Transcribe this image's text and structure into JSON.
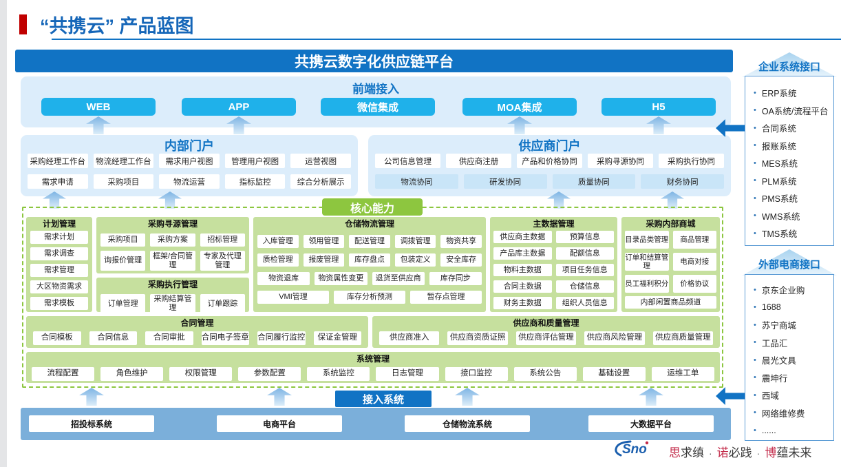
{
  "header": {
    "title": "“共携云” 产品蓝图",
    "platform": "共携云数字化供应链平台"
  },
  "frontend": {
    "title": "前端接入",
    "items": [
      "WEB",
      "APP",
      "微信集成",
      "MOA集成",
      "H5"
    ]
  },
  "internal_portal": {
    "title": "内部门户",
    "row1": [
      "采购经理工作台",
      "物流经理工作台",
      "需求用户视图",
      "管理用户视图",
      "运营视图"
    ],
    "row2": [
      "需求申请",
      "采购项目",
      "物流运营",
      "指标监控",
      "综合分析展示"
    ]
  },
  "supplier_portal": {
    "title": "供应商门户",
    "row1": [
      "公司信息管理",
      "供应商注册",
      "产品和价格协同",
      "采购寻源协同",
      "采购执行协同"
    ],
    "row2": [
      "物流协同",
      "研发协同",
      "质量协同",
      "财务协同"
    ]
  },
  "core": {
    "badge": "核心能力",
    "plan": {
      "title": "计划管理",
      "items": [
        "需求计划",
        "需求调查",
        "需求管理",
        "大区物资需求",
        "需求模板"
      ]
    },
    "sourcing": {
      "title": "采购寻源管理",
      "row1": [
        "采购项目",
        "采购方案",
        "招标管理"
      ],
      "row2": [
        "询报价管理",
        "框架/合同管理",
        "专家及代理管理"
      ]
    },
    "execution": {
      "title": "采购执行管理",
      "items": [
        "订单管理",
        "采购结算管理",
        "订单跟踪"
      ]
    },
    "warehouse": {
      "title": "仓储物流管理",
      "row1": [
        "入库管理",
        "领用管理",
        "配送管理",
        "调拨管理",
        "物资共享"
      ],
      "row2": [
        "质检管理",
        "报废管理",
        "库存盘点",
        "包装定义",
        "安全库存"
      ],
      "row3": [
        "物资退库",
        "物资属性变更",
        "退货至供应商",
        "库存同步"
      ],
      "row4": [
        "VMI管理",
        "库存分析预测",
        "暂存点管理"
      ]
    },
    "masterdata": {
      "title": "主数据管理",
      "col1": [
        "供应商主数据",
        "产品库主数据",
        "物料主数据",
        "合同主数据",
        "财务主数据"
      ],
      "col2": [
        "预算信息",
        "配额信息",
        "项目任务信息",
        "仓储信息",
        "组织人员信息"
      ]
    },
    "mall": {
      "title": "采购内部商城",
      "col1": [
        "目录品类管理",
        "订单和结算管理",
        "员工福利积分"
      ],
      "col2": [
        "商品管理",
        "电商对接",
        "价格协议"
      ],
      "bottom": "内部闲置商品频道"
    },
    "contract": {
      "title": "合同管理",
      "items": [
        "合同模板",
        "合同信息",
        "合同审批",
        "合同电子签章",
        "合同履行监控",
        "保证金管理"
      ]
    },
    "supplier_quality": {
      "title": "供应商和质量管理",
      "items": [
        "供应商准入",
        "供应商资质证照",
        "供应商评估管理",
        "供应商风险管理",
        "供应商质量管理"
      ]
    },
    "system": {
      "title": "系统管理",
      "items": [
        "流程配置",
        "角色维护",
        "权限管理",
        "参数配置",
        "系统监控",
        "日志管理",
        "接口监控",
        "系统公告",
        "基础设置",
        "运维工单"
      ]
    }
  },
  "access": {
    "badge": "接入系统",
    "items": [
      "招投标系统",
      "电商平台",
      "仓储物流系统",
      "大数据平台"
    ]
  },
  "enterprise_interfaces": {
    "title": "企业系统接口",
    "items": [
      "ERP系统",
      "OA系统/流程平台",
      "合同系统",
      "报账系统",
      "MES系统",
      "PLM系统",
      "PMS系统",
      "WMS系统",
      "TMS系统"
    ]
  },
  "ecommerce_interfaces": {
    "title": "外部电商接口",
    "items": [
      "京东企业购",
      "1688",
      "苏宁商城",
      "工品汇",
      "晨光文具",
      "震坤行",
      "西域",
      "网络维修费",
      "......"
    ]
  },
  "footer": {
    "logo": "Sno",
    "separator": "·",
    "slogan": [
      {
        "accent": "思",
        "rest": "求缜"
      },
      {
        "accent": "诺",
        "rest": "必践"
      },
      {
        "accent": "博",
        "rest": "蕴未来"
      }
    ]
  },
  "colors": {
    "accent_blue": "#1173c4",
    "cyan_button": "#1fb1ea",
    "panel_blue": "#dcedfb",
    "green_badge": "#8dc63f",
    "group_green": "#c6e09e",
    "access_bar_blue": "#7bafda",
    "title_red_bar": "#c00000",
    "slogan_accent": "#c32b4a"
  }
}
